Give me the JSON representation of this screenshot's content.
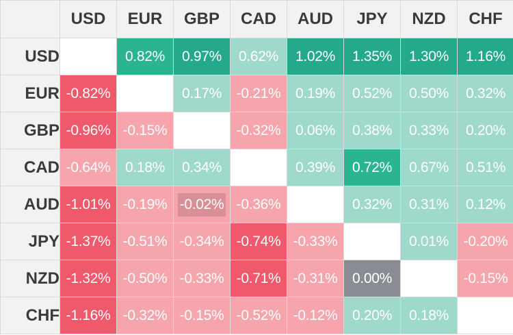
{
  "chart_data": {
    "type": "heatmap",
    "columns": [
      "USD",
      "EUR",
      "GBP",
      "CAD",
      "AUD",
      "JPY",
      "NZD",
      "CHF"
    ],
    "rows": [
      "USD",
      "EUR",
      "GBP",
      "CAD",
      "AUD",
      "JPY",
      "NZD",
      "CHF"
    ],
    "values": [
      [
        null,
        0.82,
        0.97,
        0.62,
        1.02,
        1.35,
        1.3,
        1.16
      ],
      [
        -0.82,
        null,
        0.17,
        -0.21,
        0.19,
        0.52,
        0.5,
        0.32
      ],
      [
        -0.96,
        -0.15,
        null,
        -0.32,
        0.06,
        0.38,
        0.33,
        0.2
      ],
      [
        -0.64,
        0.18,
        0.34,
        null,
        0.39,
        0.72,
        0.67,
        0.51
      ],
      [
        -1.01,
        -0.19,
        -0.02,
        -0.36,
        null,
        0.32,
        0.31,
        0.12
      ],
      [
        -1.37,
        -0.51,
        -0.34,
        -0.74,
        -0.33,
        null,
        0.01,
        -0.2
      ],
      [
        -1.32,
        -0.5,
        -0.33,
        -0.71,
        -0.31,
        0.0,
        null,
        -0.15
      ],
      [
        -1.16,
        -0.32,
        -0.15,
        -0.52,
        -0.12,
        0.2,
        0.18,
        null
      ]
    ],
    "labels": [
      [
        "",
        "0.82%",
        "0.97%",
        "0.62%",
        "1.02%",
        "1.35%",
        "1.30%",
        "1.16%"
      ],
      [
        "-0.82%",
        "",
        "0.17%",
        "-0.21%",
        "0.19%",
        "0.52%",
        "0.50%",
        "0.32%"
      ],
      [
        "-0.96%",
        "-0.15%",
        "",
        "-0.32%",
        "0.06%",
        "0.38%",
        "0.33%",
        "0.20%"
      ],
      [
        "-0.64%",
        "0.18%",
        "0.34%",
        "",
        "0.39%",
        "0.72%",
        "0.67%",
        "0.51%"
      ],
      [
        "-1.01%",
        "-0.19%",
        "-0.02%",
        "-0.36%",
        "",
        "0.32%",
        "0.31%",
        "0.12%"
      ],
      [
        "-1.37%",
        "-0.51%",
        "-0.34%",
        "-0.74%",
        "-0.33%",
        "",
        "0.01%",
        "-0.20%"
      ],
      [
        "-1.32%",
        "-0.50%",
        "-0.33%",
        "-0.71%",
        "-0.31%",
        "0.00%",
        "",
        "-0.15%"
      ],
      [
        "-1.16%",
        "-0.32%",
        "-0.15%",
        "-0.52%",
        "-0.12%",
        "0.20%",
        "0.18%",
        ""
      ]
    ],
    "unit": "%",
    "colors": {
      "positive_strong": "#24a98a",
      "positive_medium": "#2ab590",
      "positive_light": "#9fd9cb",
      "negative_strong": "#f0596b",
      "negative_light": "#f6a5ad",
      "neutral": "#8a8c93",
      "near_zero_inset": "#d98f97",
      "header_bg": "#f2f2f2",
      "header_text": "#3a3a3a",
      "empty": "#ffffff"
    }
  }
}
